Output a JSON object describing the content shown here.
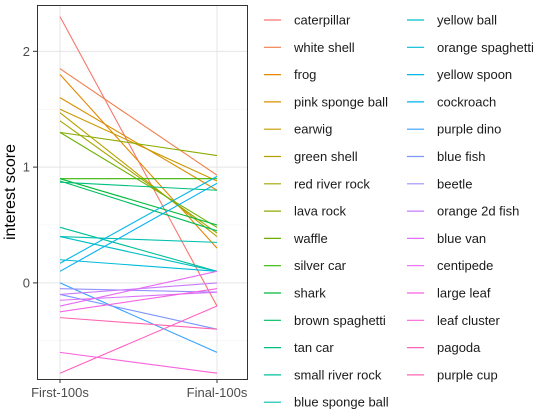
{
  "chart_data": {
    "type": "line",
    "x": [
      "First-100s",
      "Final-100s"
    ],
    "ylabel": "interest score",
    "xlabel": "",
    "ylim": [
      -0.83,
      2.4
    ],
    "yticks": [
      0,
      1,
      2
    ],
    "grid": true,
    "legend_position": "right",
    "series": [
      {
        "name": "caterpillar",
        "color": "#F8766D",
        "values": [
          2.3,
          -0.2
        ]
      },
      {
        "name": "white shell",
        "color": "#F07E4B",
        "values": [
          1.85,
          0.93
        ]
      },
      {
        "name": "frog",
        "color": "#E58700",
        "values": [
          1.8,
          0.3
        ]
      },
      {
        "name": "pink sponge ball",
        "color": "#D89000",
        "values": [
          1.6,
          0.8
        ]
      },
      {
        "name": "earwig",
        "color": "#C99800",
        "values": [
          1.5,
          0.88
        ]
      },
      {
        "name": "green shell",
        "color": "#B79F00",
        "values": [
          1.47,
          0.4
        ]
      },
      {
        "name": "red river rock",
        "color": "#A3A500",
        "values": [
          1.4,
          0.43
        ]
      },
      {
        "name": "lava rock",
        "color": "#8BAB00",
        "values": [
          1.3,
          1.1
        ]
      },
      {
        "name": "waffle",
        "color": "#6BB100",
        "values": [
          1.3,
          0.48
        ]
      },
      {
        "name": "silver car",
        "color": "#39B600",
        "values": [
          0.9,
          0.9
        ]
      },
      {
        "name": "shark",
        "color": "#00BA38",
        "values": [
          0.9,
          0.5
        ]
      },
      {
        "name": "brown spaghetti",
        "color": "#00BD5F",
        "values": [
          0.88,
          0.45
        ]
      },
      {
        "name": "tan car",
        "color": "#00BF7D",
        "values": [
          0.87,
          0.8
        ]
      },
      {
        "name": "small river rock",
        "color": "#00C097",
        "values": [
          0.48,
          0.1
        ]
      },
      {
        "name": "blue sponge ball",
        "color": "#00C0AF",
        "values": [
          0.4,
          0.35
        ]
      },
      {
        "name": "yellow ball",
        "color": "#00BFC4",
        "values": [
          0.4,
          0.1
        ]
      },
      {
        "name": "orange spaghetti",
        "color": "#00BCD8",
        "values": [
          0.2,
          0.1
        ]
      },
      {
        "name": "yellow spoon",
        "color": "#00B8E7",
        "values": [
          0.17,
          0.92
        ]
      },
      {
        "name": "cockroach",
        "color": "#00B0F6",
        "values": [
          0.1,
          0.86
        ]
      },
      {
        "name": "purple dino",
        "color": "#35A2FF",
        "values": [
          0.0,
          -0.6
        ]
      },
      {
        "name": "blue fish",
        "color": "#7997FF",
        "values": [
          -0.1,
          -0.4
        ]
      },
      {
        "name": "beetle",
        "color": "#9590FF",
        "values": [
          -0.05,
          -0.08
        ]
      },
      {
        "name": "orange 2d fish",
        "color": "#C77CFF",
        "values": [
          -0.1,
          0.0
        ]
      },
      {
        "name": "blue van",
        "color": "#DC71FA",
        "values": [
          -0.15,
          -0.08
        ]
      },
      {
        "name": "centipede",
        "color": "#E76BF3",
        "values": [
          -0.2,
          0.1
        ]
      },
      {
        "name": "large leaf",
        "color": "#F564E3",
        "values": [
          -0.25,
          -0.05
        ]
      },
      {
        "name": "leaf cluster",
        "color": "#FA62DB",
        "values": [
          -0.6,
          -0.78
        ]
      },
      {
        "name": "pagoda",
        "color": "#FF61C3",
        "values": [
          -0.78,
          -0.2
        ]
      },
      {
        "name": "purple cup",
        "color": "#FF64B0",
        "values": [
          -0.3,
          -0.4
        ]
      }
    ]
  }
}
